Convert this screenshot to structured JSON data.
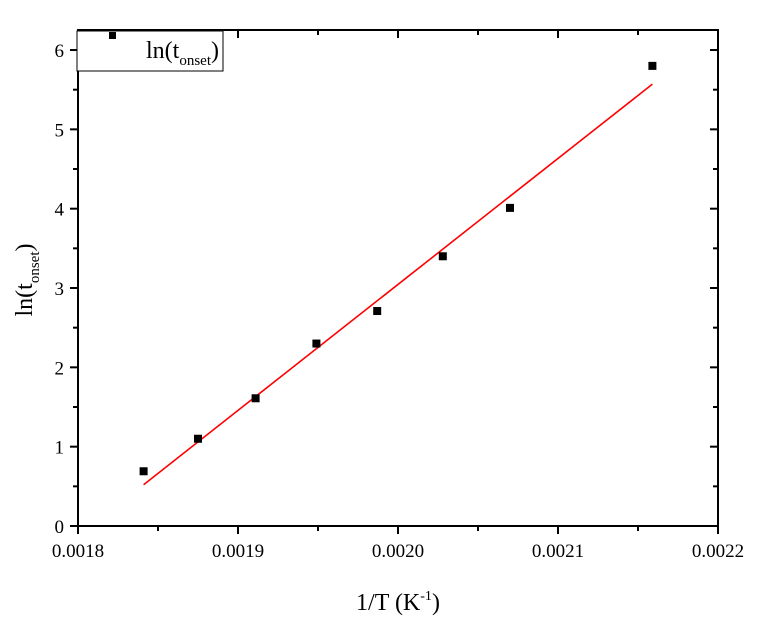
{
  "chart_data": {
    "type": "scatter",
    "title": "",
    "xlabel": "1/T (K-1)",
    "xlabel_main": "1/T (K",
    "xlabel_sup": "-1",
    "xlabel_end": ")",
    "ylabel_main": "ln(t",
    "ylabel_sub": "onset",
    "ylabel_end": ")",
    "xlim": [
      0.0018,
      0.0022
    ],
    "ylim": [
      0,
      6.25
    ],
    "xticks": [
      "0.0018",
      "0.0019",
      "0.0020",
      "0.0021",
      "0.0022"
    ],
    "yticks": [
      "0",
      "1",
      "2",
      "3",
      "4",
      "5",
      "6"
    ],
    "grid": false,
    "legend": {
      "position": "top-left",
      "entries": [
        "ln(t_onset)"
      ]
    },
    "series": [
      {
        "name": "ln(t_onset)",
        "marker": "square",
        "color": "#000000",
        "x": [
          0.001841,
          0.001875,
          0.001911,
          0.001949,
          0.001987,
          0.002028,
          0.00207,
          0.002159
        ],
        "y": [
          0.69,
          1.1,
          1.61,
          2.3,
          2.71,
          3.4,
          4.01,
          5.8
        ]
      },
      {
        "name": "linear fit",
        "type": "line",
        "color": "#ff0000",
        "x": [
          0.001841,
          0.002159
        ],
        "y": [
          0.52,
          5.57
        ]
      }
    ]
  },
  "legend": {
    "label_main": "ln(t",
    "label_sub": "onset",
    "label_end": ")"
  }
}
